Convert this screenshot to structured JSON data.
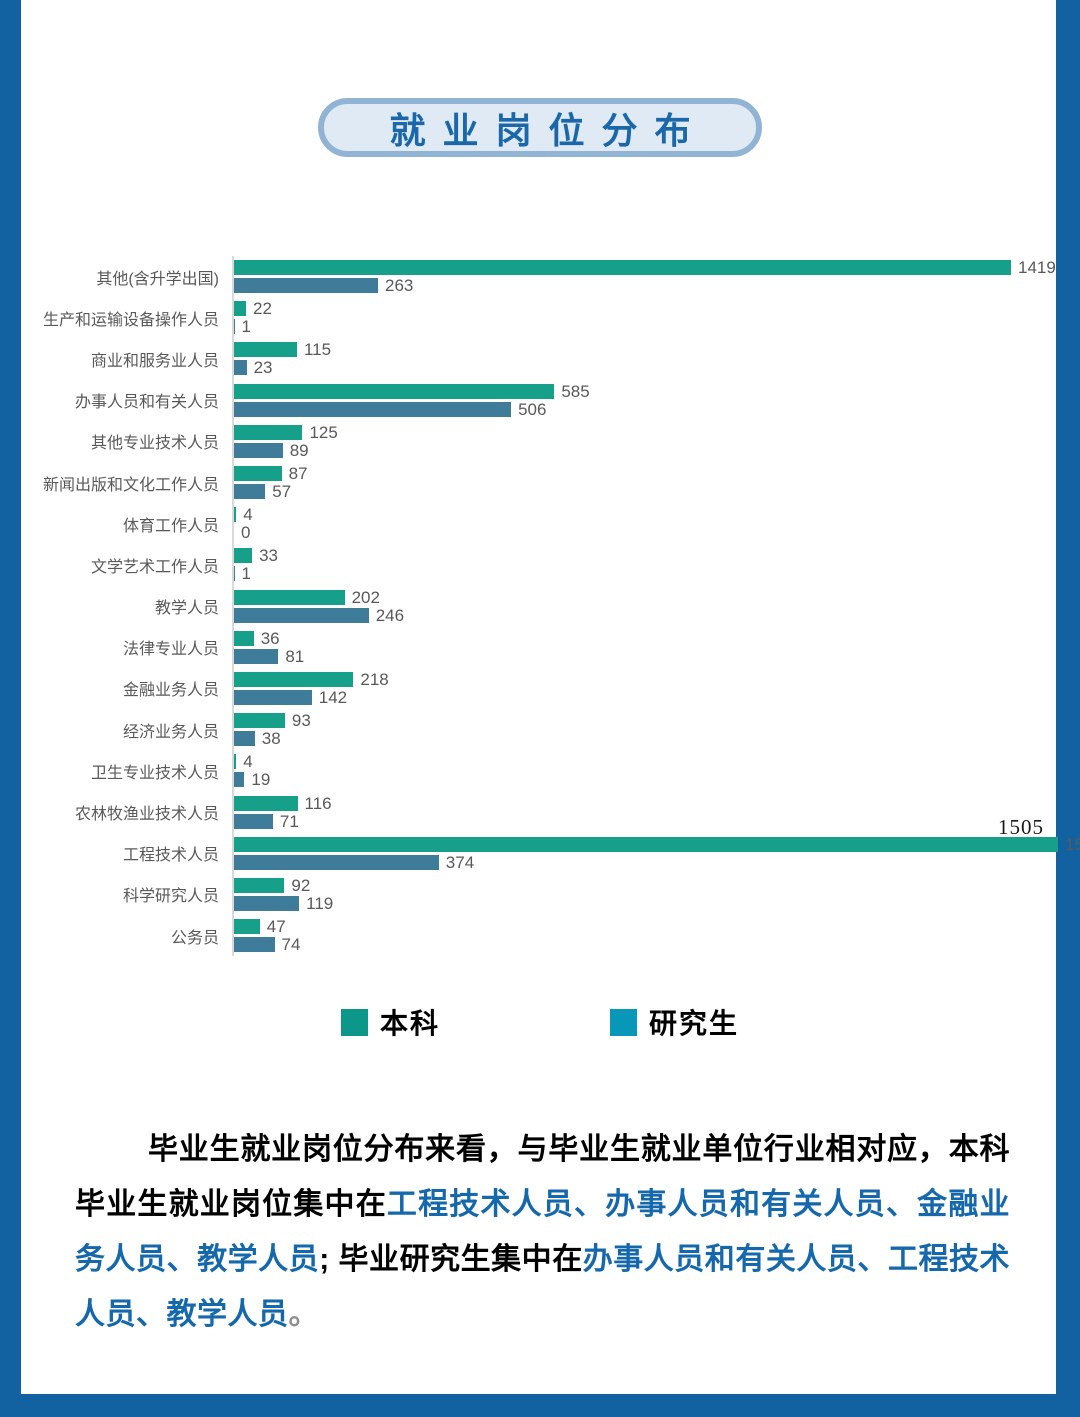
{
  "title": "就业岗位分布",
  "colors": {
    "frame": "#1262A1",
    "title_text": "#1A67A9",
    "title_pill_bg": "#DFEAF4",
    "title_pill_border": "#92B4D4",
    "value_label": "#595959",
    "category_label": "#595959",
    "axis_line": "#D9D9D9",
    "paragraph_blue": "#1568AC"
  },
  "chart_data": {
    "type": "bar",
    "orientation": "horizontal",
    "title": "就业岗位分布",
    "categories": [
      "其他(含升学出国)",
      "生产和运输设备操作人员",
      "商业和服务业人员",
      "办事人员和有关人员",
      "其他专业技术人员",
      "新闻出版和文化工作人员",
      "体育工作人员",
      "文学艺术工作人员",
      "教学人员",
      "法律专业人员",
      "金融业务人员",
      "经济业务人员",
      "卫生专业技术人员",
      "农林牧渔业技术人员",
      "工程技术人员",
      "科学研究人员",
      "公务员"
    ],
    "series": [
      {
        "name": "本科",
        "color": "#17A089",
        "values": [
          1419,
          22,
          115,
          585,
          125,
          87,
          4,
          33,
          202,
          36,
          218,
          93,
          4,
          116,
          1505,
          92,
          47
        ]
      },
      {
        "name": "研究生",
        "color": "#3E7C99",
        "values": [
          263,
          1,
          23,
          506,
          89,
          57,
          0,
          1,
          246,
          81,
          142,
          38,
          19,
          71,
          374,
          119,
          74
        ]
      }
    ],
    "xlim": [
      0,
      1419
    ],
    "grid": false,
    "legend_position": "bottom",
    "legend": [
      {
        "label": "本科",
        "color": "#0D968A"
      },
      {
        "label": "研究生",
        "color": "#0997B9"
      }
    ],
    "annotation": {
      "text": "1505",
      "target": "工程技术人员",
      "series": "本科"
    }
  },
  "paragraph": {
    "runs": [
      {
        "text": "毕业生就业岗位分布来看，与毕业生就业单位行业相对应，本科毕业生就业岗位集中在",
        "color": "#000000"
      },
      {
        "text": "工程技术人员、办事人员和有关人员、金融业务人员、教学人员",
        "color": "#1568AC"
      },
      {
        "text": "; 毕业研究生集中在",
        "color": "#000000"
      },
      {
        "text": "办事人员和有关人员、工程技术人员、教学人员",
        "color": "#1568AC"
      },
      {
        "text": "。",
        "color": "#909090"
      }
    ]
  }
}
